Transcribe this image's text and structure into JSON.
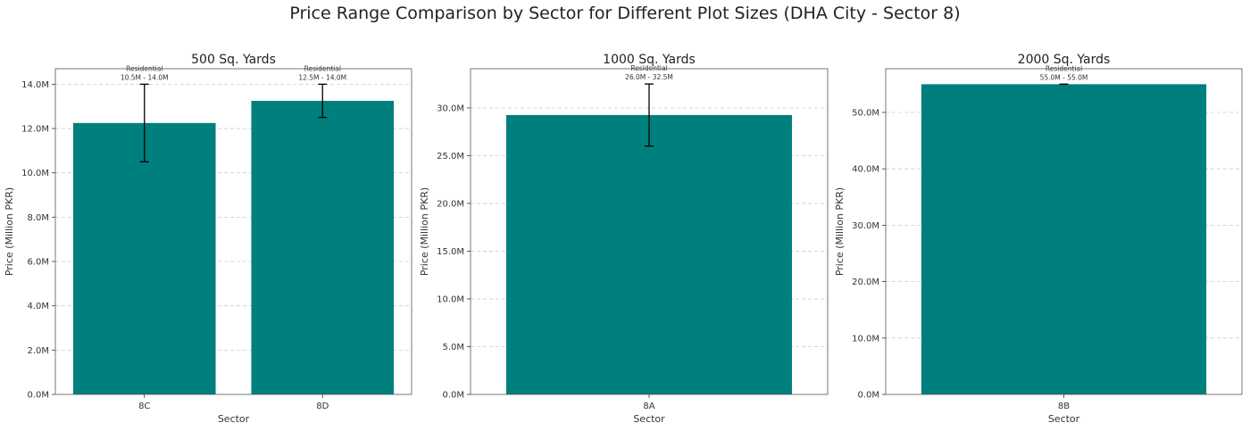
{
  "figure": {
    "title": "Price Range Comparison by Sector for Different Plot Sizes (DHA City - Sector 8)"
  },
  "colors": {
    "bar": "#007f7f",
    "grid": "#cccccc",
    "error_bar": "#000000",
    "text": "#333333"
  },
  "chart_data": [
    {
      "type": "bar",
      "title": "500 Sq. Yards",
      "xlabel": "Sector",
      "ylabel": "Price (Million PKR)",
      "categories": [
        "8C",
        "8D"
      ],
      "values": [
        12.25,
        13.25
      ],
      "ranges": [
        [
          10.5,
          14.0
        ],
        [
          12.5,
          14.0
        ]
      ],
      "annotations": [
        [
          "Residential",
          "10.5M - 14.0M"
        ],
        [
          "Residential",
          "12.5M - 14.0M"
        ]
      ],
      "ylim": [
        0,
        14.7
      ],
      "yticks": [
        0,
        2,
        4,
        6,
        8,
        10,
        12,
        14
      ],
      "ytick_labels": [
        "0.0M",
        "2.0M",
        "4.0M",
        "6.0M",
        "8.0M",
        "10.0M",
        "12.0M",
        "14.0M"
      ],
      "grid": "y-dashed"
    },
    {
      "type": "bar",
      "title": "1000 Sq. Yards",
      "xlabel": "Sector",
      "ylabel": "Price (Million PKR)",
      "categories": [
        "8A"
      ],
      "values": [
        29.25
      ],
      "ranges": [
        [
          26.0,
          32.5
        ]
      ],
      "annotations": [
        [
          "Residential",
          "26.0M - 32.5M"
        ]
      ],
      "ylim": [
        0,
        34.1
      ],
      "yticks": [
        0,
        5,
        10,
        15,
        20,
        25,
        30
      ],
      "ytick_labels": [
        "0.0M",
        "5.0M",
        "10.0M",
        "15.0M",
        "20.0M",
        "25.0M",
        "30.0M"
      ],
      "grid": "y-dashed"
    },
    {
      "type": "bar",
      "title": "2000 Sq. Yards",
      "xlabel": "Sector",
      "ylabel": "Price (Million PKR)",
      "categories": [
        "8B"
      ],
      "values": [
        55.0
      ],
      "ranges": [
        [
          55.0,
          55.0
        ]
      ],
      "annotations": [
        [
          "Residential",
          "55.0M - 55.0M"
        ]
      ],
      "ylim": [
        0,
        57.75
      ],
      "yticks": [
        0,
        10,
        20,
        30,
        40,
        50
      ],
      "ytick_labels": [
        "0.0M",
        "10.0M",
        "20.0M",
        "30.0M",
        "40.0M",
        "50.0M"
      ],
      "grid": "y-dashed"
    }
  ]
}
